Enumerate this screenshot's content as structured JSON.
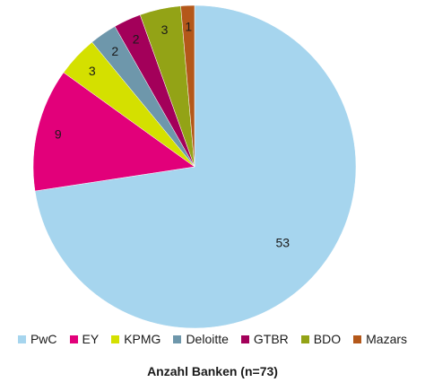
{
  "chart_data": {
    "type": "pie",
    "title": "Anzahl Banken (n=73)",
    "legend_position": "bottom",
    "start_angle": "12 o'clock",
    "direction": "clockwise",
    "slices": [
      {
        "label": "PwC",
        "value": 53,
        "color": "#a6d5ee"
      },
      {
        "label": "EY",
        "value": 9,
        "color": "#e2007a"
      },
      {
        "label": "KPMG",
        "value": 3,
        "color": "#d4e000"
      },
      {
        "label": "Deloitte",
        "value": 2,
        "color": "#6e97ab"
      },
      {
        "label": "GTBR",
        "value": 2,
        "color": "#a3005a"
      },
      {
        "label": "BDO",
        "value": 3,
        "color": "#93a316"
      },
      {
        "label": "Mazars",
        "value": 1,
        "color": "#b4581a"
      }
    ]
  }
}
